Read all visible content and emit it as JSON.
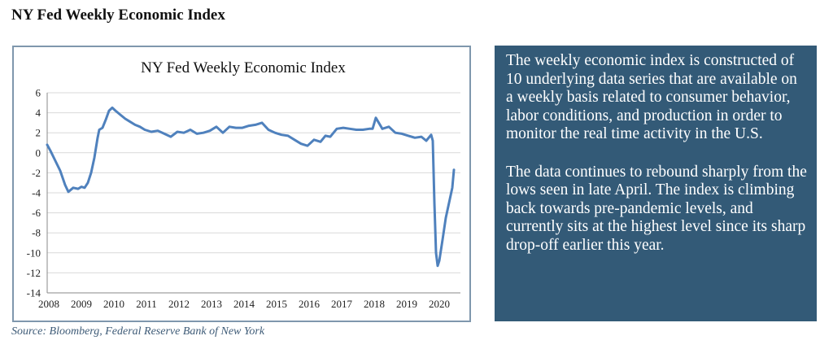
{
  "page": {
    "heading": "NY Fed Weekly Economic Index",
    "source": "Source: Bloomberg, Federal Reserve Bank of New York"
  },
  "info_box": {
    "paragraphs": [
      "The weekly economic index is constructed of 10 underlying data series that are available on a weekly basis related to consumer behavior, labor conditions, and production in order to monitor the real time activity in the U.S.",
      "The data continues to rebound sharply from the lows seen in late April. The index is climbing back towards pre-pandemic levels, and currently sits at the highest level since its sharp drop-off earlier this year."
    ]
  },
  "colors": {
    "line": "#4f81bd",
    "frame": "#7f97ad",
    "grid": "#d9d9d9",
    "info_box_bg": "#335a77",
    "source_text": "#3e5b77"
  },
  "chart_data": {
    "type": "line",
    "title": "NY Fed Weekly Economic Index",
    "xlabel": "",
    "ylabel": "",
    "xlim": [
      2008,
      2020.7
    ],
    "ylim": [
      -14,
      6
    ],
    "yticks": [
      6,
      4,
      2,
      0,
      -2,
      -4,
      -6,
      -8,
      -10,
      -12,
      -14
    ],
    "xticks": [
      "2008",
      "2009",
      "2010",
      "2011",
      "2012",
      "2013",
      "2014",
      "2015",
      "2016",
      "2017",
      "2018",
      "2019",
      "2020"
    ],
    "grid": "horizontal",
    "legend": "none",
    "series": [
      {
        "x": [
          2008.0,
          2008.1,
          2008.25,
          2008.4,
          2008.55,
          2008.65,
          2008.8,
          2008.95,
          2009.05,
          2009.15,
          2009.25,
          2009.35,
          2009.45,
          2009.55,
          2009.6,
          2009.7,
          2009.8,
          2009.9,
          2010.0,
          2010.1,
          2010.25,
          2010.4,
          2010.55,
          2010.7,
          2010.85,
          2011.0,
          2011.2,
          2011.4,
          2011.6,
          2011.8,
          2012.0,
          2012.2,
          2012.4,
          2012.6,
          2012.8,
          2013.0,
          2013.2,
          2013.4,
          2013.6,
          2013.8,
          2014.0,
          2014.2,
          2014.4,
          2014.6,
          2014.8,
          2015.0,
          2015.2,
          2015.4,
          2015.6,
          2015.8,
          2016.0,
          2016.2,
          2016.4,
          2016.55,
          2016.7,
          2016.9,
          2017.1,
          2017.3,
          2017.5,
          2017.7,
          2017.9,
          2018.0,
          2018.1,
          2018.3,
          2018.5,
          2018.7,
          2018.9,
          2019.1,
          2019.3,
          2019.5,
          2019.65,
          2019.8,
          2019.85,
          2019.9,
          2019.95,
          2020.0,
          2020.05,
          2020.15,
          2020.25,
          2020.35,
          2020.45,
          2020.5
        ],
        "values": [
          0.8,
          0.2,
          -0.8,
          -1.8,
          -3.2,
          -3.9,
          -3.5,
          -3.6,
          -3.4,
          -3.5,
          -3.0,
          -2.0,
          -0.5,
          1.5,
          2.3,
          2.5,
          3.3,
          4.2,
          4.5,
          4.2,
          3.8,
          3.4,
          3.1,
          2.8,
          2.6,
          2.3,
          2.1,
          2.2,
          1.9,
          1.6,
          2.1,
          2.0,
          2.3,
          1.9,
          2.0,
          2.2,
          2.6,
          2.0,
          2.6,
          2.5,
          2.5,
          2.7,
          2.8,
          3.0,
          2.3,
          2.0,
          1.8,
          1.7,
          1.3,
          0.9,
          0.7,
          1.3,
          1.1,
          1.7,
          1.6,
          2.4,
          2.5,
          2.4,
          2.3,
          2.3,
          2.4,
          2.4,
          3.5,
          2.4,
          2.6,
          2.0,
          1.9,
          1.7,
          1.5,
          1.6,
          1.2,
          1.8,
          1.2,
          -5.0,
          -10.0,
          -11.3,
          -10.8,
          -8.7,
          -6.5,
          -5.0,
          -3.5,
          -1.7
        ]
      }
    ]
  }
}
